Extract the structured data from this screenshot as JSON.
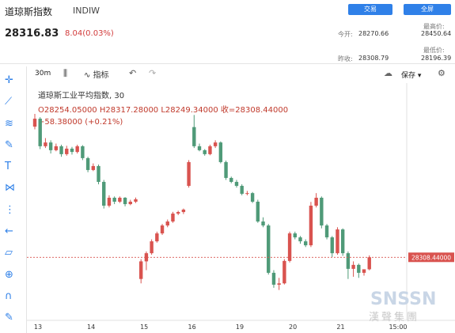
{
  "header": {
    "title": "道琼斯指数",
    "code": "INDIW",
    "buttons": [
      "交易",
      "全屏"
    ],
    "price": "28316.83",
    "change": "8.04(0.03%)",
    "stats": [
      {
        "label": "今开:",
        "value": "28270.66"
      },
      {
        "label": "最高价:",
        "value": "28450.64"
      },
      {
        "label": "昨收:",
        "value": "28308.79"
      },
      {
        "label": "最低价:",
        "value": "28196.39"
      }
    ]
  },
  "toolbar": {
    "interval": "30m",
    "indicators": "指标",
    "save": "保存"
  },
  "legend": {
    "title": "道琼斯工业平均指数, 30",
    "ohlc": "O28254.05000  H28317.28000  L28249.34000  收=28308.44000",
    "change": "+58.38000 (+0.21%)"
  },
  "watermark": "漢聲集團",
  "chart_data": {
    "type": "candlestick",
    "categories": [
      "13",
      null,
      null,
      null,
      null,
      null,
      null,
      null,
      null,
      null,
      "14",
      null,
      null,
      null,
      null,
      null,
      null,
      null,
      null,
      null,
      "15",
      null,
      null,
      null,
      null,
      null,
      null,
      null,
      null,
      "16",
      null,
      null,
      null,
      null,
      null,
      null,
      null,
      null,
      "19",
      null,
      null,
      null,
      null,
      null,
      null,
      null,
      null,
      null,
      "20",
      null,
      null,
      null,
      null,
      null,
      null,
      null,
      null,
      "21",
      null,
      null,
      null,
      null,
      null,
      null
    ],
    "open": [
      28902,
      28938,
      28813,
      28830,
      28795,
      28813,
      28777,
      28802,
      28787,
      28813,
      28759,
      28705,
      28723,
      28651,
      28543,
      28579,
      28561,
      28579,
      28550,
      28561,
      28210,
      28290,
      28327,
      28381,
      28417,
      28453,
      28471,
      28507,
      28514,
      28633,
      28900,
      28813,
      28795,
      28777,
      28813,
      28830,
      28741,
      28669,
      28651,
      28633,
      28597,
      28600,
      28561,
      28471,
      28453,
      28238,
      28184,
      28190,
      28292,
      28417,
      28399,
      28381,
      28363,
      28543,
      28579,
      28453,
      28399,
      28327,
      28435,
      28327,
      28256,
      28274,
      28238,
      28254.05
    ],
    "high": [
      28960,
      28945,
      28850,
      28840,
      28825,
      28820,
      28815,
      28810,
      28820,
      28818,
      28765,
      28735,
      28730,
      28660,
      28590,
      28585,
      28585,
      28582,
      28570,
      28580,
      28300,
      28335,
      28390,
      28425,
      28460,
      28480,
      28515,
      28520,
      28530,
      28750,
      28955,
      28825,
      28800,
      28820,
      28840,
      28835,
      28748,
      28675,
      28660,
      28640,
      28610,
      28605,
      28570,
      28490,
      28460,
      28250,
      28215,
      28300,
      28425,
      28425,
      28405,
      28390,
      28560,
      28600,
      28585,
      28460,
      28405,
      28445,
      28440,
      28335,
      28290,
      28280,
      28250,
      28317.28
    ],
    "low": [
      28890,
      28800,
      28805,
      28780,
      28790,
      28765,
      28770,
      28775,
      28780,
      28750,
      28695,
      28700,
      28640,
      28530,
      28535,
      28550,
      28555,
      28540,
      28545,
      28555,
      28190,
      28250,
      28320,
      28375,
      28410,
      28445,
      28465,
      28500,
      28505,
      28625,
      28805,
      28790,
      28770,
      28772,
      28805,
      28735,
      28660,
      28645,
      28625,
      28590,
      28590,
      28555,
      28465,
      28445,
      28230,
      28170,
      28160,
      28185,
      28285,
      28390,
      28370,
      28355,
      28355,
      28535,
      28440,
      28390,
      28310,
      28320,
      28315,
      28210,
      28220,
      28215,
      28225,
      28249.34
    ],
    "close": [
      28938,
      28813,
      28830,
      28795,
      28813,
      28777,
      28802,
      28787,
      28813,
      28759,
      28705,
      28723,
      28651,
      28543,
      28579,
      28561,
      28579,
      28550,
      28561,
      28572,
      28290,
      28327,
      28381,
      28417,
      28453,
      28471,
      28507,
      28514,
      28525,
      28741,
      28813,
      28795,
      28777,
      28813,
      28830,
      28741,
      28669,
      28651,
      28633,
      28597,
      28600,
      28561,
      28471,
      28453,
      28238,
      28184,
      28190,
      28292,
      28417,
      28399,
      28381,
      28363,
      28543,
      28579,
      28453,
      28399,
      28327,
      28435,
      28327,
      28256,
      28274,
      28238,
      28254,
      28308.44
    ],
    "time_label": "15:00",
    "up_color": "#d9534f",
    "down_color": "#4f9a78",
    "ylim": [
      28040,
      29100
    ],
    "last_price": {
      "value": 28308.44,
      "label": "28308.44000"
    }
  }
}
